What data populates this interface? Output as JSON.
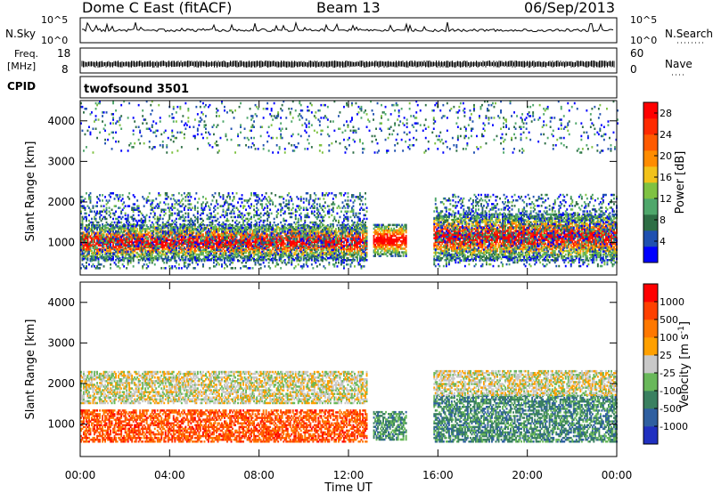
{
  "header": {
    "station": "Dome C East (fitACF)",
    "beam": "Beam 13",
    "date": "06/Sep/2013"
  },
  "noise_panel": {
    "left_label": "N.Sky",
    "right_label": "N.Search",
    "top_tick": "10^5",
    "bottom_tick": "10^0",
    "right_top_tick": "10^5",
    "right_bottom_tick": "10^0"
  },
  "freq_panel": {
    "left_label_1": "Freq.",
    "left_label_2": "[MHz]",
    "right_label": "Nave",
    "left_ticks": [
      "18",
      "8"
    ],
    "right_ticks": [
      "60",
      "0"
    ]
  },
  "cpid_panel": {
    "label": "CPID",
    "value": "twofsound 3501"
  },
  "chart_data": [
    {
      "type": "heatmap",
      "name": "power",
      "ylabel": "Slant Range [km]",
      "ylim": [
        200,
        4500
      ],
      "xlim": [
        0,
        24
      ],
      "yticks": [
        "1000",
        "2000",
        "3000",
        "4000"
      ],
      "ytick_values": [
        1000,
        2000,
        3000,
        4000
      ],
      "colorbar": {
        "label": "Power [dB]",
        "ticks": [
          "28",
          "24",
          "20",
          "16",
          "12",
          "8",
          "4"
        ],
        "colors": [
          "#0000ff",
          "#1f50b0",
          "#2e6e45",
          "#4fa76b",
          "#7fc242",
          "#f2c21a",
          "#ff8c00",
          "#ff5a00",
          "#ff2a00",
          "#ff0000"
        ],
        "range": [
          0,
          30
        ]
      },
      "regions": [
        {
          "t": [
            0.0,
            12.8
          ],
          "r": [
            550,
            1450
          ],
          "level": 0.85
        },
        {
          "t": [
            0.0,
            12.8
          ],
          "r": [
            350,
            2200
          ],
          "level": 0.35
        },
        {
          "t": [
            13.1,
            14.6
          ],
          "r": [
            650,
            1450
          ],
          "level": 0.75
        },
        {
          "t": [
            15.8,
            24.0
          ],
          "r": [
            550,
            1700
          ],
          "level": 0.85
        },
        {
          "t": [
            15.8,
            24.0
          ],
          "r": [
            400,
            2200
          ],
          "level": 0.35
        },
        {
          "t": [
            0.0,
            24.0
          ],
          "r": [
            3200,
            4500
          ],
          "level": 0.1
        }
      ]
    },
    {
      "type": "heatmap",
      "name": "velocity",
      "ylabel": "Slant Range [km]",
      "ylim": [
        200,
        4500
      ],
      "xlim": [
        0,
        24
      ],
      "yticks": [
        "1000",
        "2000",
        "3000",
        "4000"
      ],
      "ytick_values": [
        1000,
        2000,
        3000,
        4000
      ],
      "xticks": [
        "00:00",
        "04:00",
        "08:00",
        "12:00",
        "16:00",
        "20:00",
        "00:00"
      ],
      "xtick_values": [
        0,
        4,
        8,
        12,
        16,
        20,
        24
      ],
      "xlabel": "Time UT",
      "colorbar": {
        "label": "Velocity [m s^-1]",
        "ticks": [
          "1000",
          "500",
          "100",
          "25",
          "-25",
          "-100",
          "-500",
          "-1000"
        ],
        "colors": [
          "#2030c0",
          "#2f5fa0",
          "#3a8060",
          "#69b85a",
          "#c8c8c8",
          "#ffa000",
          "#ff7800",
          "#ff4000",
          "#ff0000"
        ],
        "range": [
          -1000,
          1000
        ]
      },
      "regions": [
        {
          "t": [
            0.0,
            12.8
          ],
          "r": [
            550,
            1350
          ],
          "v": -0.6
        },
        {
          "t": [
            0.0,
            12.8
          ],
          "r": [
            1500,
            2300
          ],
          "v": 0.0
        },
        {
          "t": [
            13.1,
            14.6
          ],
          "r": [
            600,
            1300
          ],
          "v": 0.4
        },
        {
          "t": [
            15.8,
            24.0
          ],
          "r": [
            550,
            1700
          ],
          "v": 0.45
        },
        {
          "t": [
            15.8,
            24.0
          ],
          "r": [
            1700,
            2300
          ],
          "v": 0.0
        }
      ]
    }
  ]
}
